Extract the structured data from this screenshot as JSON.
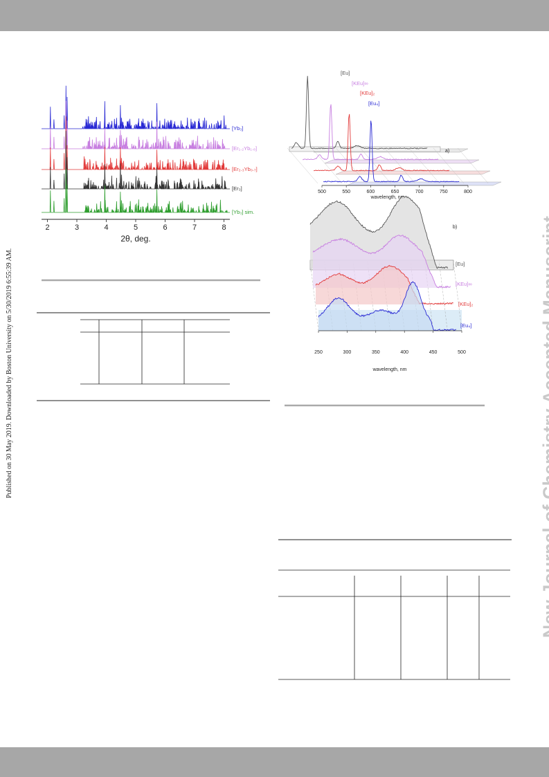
{
  "side_note": "Published on 30 May 2019. Downloaded by Boston University on 5/30/2019 6:55:39 AM.",
  "watermark": "New Journal of Chemistry Accepted Manuscript",
  "chart_data": [
    {
      "type": "line",
      "title": "",
      "xlabel": "2θ, deg.",
      "ylabel": "",
      "xlim": [
        1.8,
        8.2
      ],
      "xticks": [
        "2",
        "3",
        "4",
        "5",
        "6",
        "7",
        "8"
      ],
      "grid": false,
      "series": [
        {
          "name": "[Yb₃]",
          "color": "#2a2ad4"
        },
        {
          "name": "[Er₁.₂Yb₁.₈]",
          "color": "#c77ee0"
        },
        {
          "name": "[Er₂.₃Yb₀.₇]",
          "color": "#e23a3a"
        },
        {
          "name": "[Er₃]",
          "color": "#333333"
        },
        {
          "name": "[Yb₃] sim.",
          "color": "#2f9e2f"
        }
      ]
    },
    {
      "type": "line",
      "panel": "a)",
      "xlabel": "wavelength, nm",
      "xlim": [
        500,
        800
      ],
      "xticks": [
        "500",
        "550",
        "600",
        "650",
        "700",
        "750",
        "800"
      ],
      "series": [
        {
          "name": "[Eu]",
          "color": "#555555"
        },
        {
          "name": "[KEu]∞",
          "color": "#c77ee0"
        },
        {
          "name": "[KEu]₂",
          "color": "#e23a3a"
        },
        {
          "name": "[Eu₄]",
          "color": "#2a2ad4"
        }
      ]
    },
    {
      "type": "area",
      "panel": "b)",
      "xlabel": "wavelength, nm",
      "xlim": [
        250,
        500
      ],
      "xticks": [
        "250",
        "300",
        "350",
        "400",
        "450",
        "500"
      ],
      "series": [
        {
          "name": "[Eu]",
          "color": "#555555"
        },
        {
          "name": "[KEu]∞",
          "color": "#c77ee0"
        },
        {
          "name": "[KEu]₂",
          "color": "#e23a3a"
        },
        {
          "name": "[Eu₄]",
          "color": "#2a2ad4"
        }
      ]
    }
  ]
}
